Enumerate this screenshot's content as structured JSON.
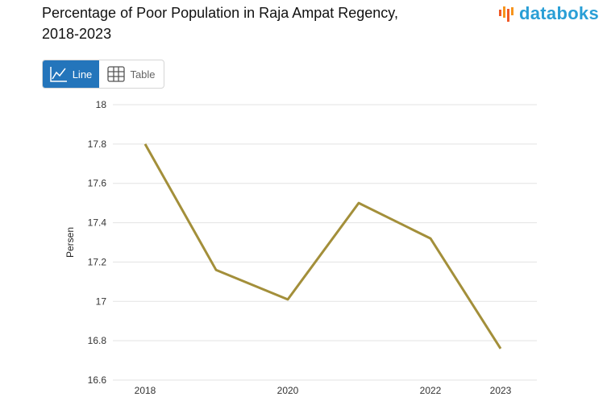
{
  "header": {
    "title_line1": "Percentage of Poor Population in Raja Ampat Regency,",
    "title_line2": "2018-2023",
    "brand": "databoks"
  },
  "toggle": {
    "line_label": "Line",
    "table_label": "Table",
    "active": "Line"
  },
  "colors": {
    "series": "#a38f3a",
    "grid": "#e3e3e3",
    "accent": "#2475bb",
    "brand": "#2a9fd6"
  },
  "chart_data": {
    "type": "line",
    "title": "Percentage of Poor Population in Raja Ampat Regency, 2018-2023",
    "xlabel": "",
    "ylabel": "Persen",
    "x": [
      2018,
      2019,
      2020,
      2021,
      2022,
      2023
    ],
    "x_tick_labels": [
      "2018",
      "2020",
      "2022",
      "2023"
    ],
    "series": [
      {
        "values": [
          17.8,
          17.16,
          17.01,
          17.5,
          17.32,
          16.76
        ]
      }
    ],
    "ylim": [
      16.6,
      18
    ],
    "yticks": [
      16.6,
      16.8,
      17,
      17.2,
      17.4,
      17.6,
      17.8,
      18
    ],
    "ytick_labels": [
      "16.6",
      "16.8",
      "17",
      "17.2",
      "17.4",
      "17.6",
      "17.8",
      "18"
    ],
    "grid": true,
    "legend": "none"
  }
}
